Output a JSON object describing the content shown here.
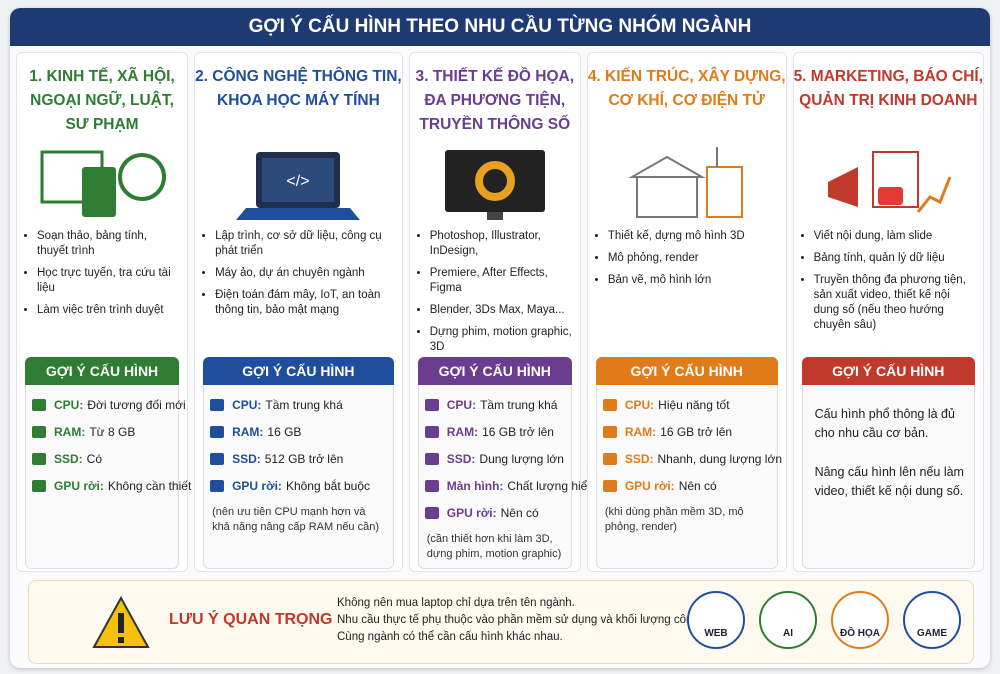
{
  "header": {
    "title": "GỢI Ý CẤU HÌNH THEO NHU CẦU TỪNG NHÓM NGÀNH"
  },
  "columns": [
    {
      "title": [
        "1. KINH TẾ, XÃ HỘI,",
        "NGOẠI NGỮ, LUẬT,",
        "SƯ PHẠM"
      ],
      "uses": [
        "Soạn thảo, bảng tính, thuyết trình",
        "Học trực tuyến, tra cứu tài liệu",
        "Làm việc trên trình duyệt"
      ],
      "config_heading": "GỢI Ý CẤU HÌNH",
      "specs": [
        {
          "label": "CPU:",
          "value": "Đời tương đối mới"
        },
        {
          "label": "RAM:",
          "value": "Từ 8 GB"
        },
        {
          "label": "SSD:",
          "value": "Có"
        },
        {
          "label": "GPU rời:",
          "value": "Không cần thiết"
        }
      ]
    },
    {
      "title": [
        "2. CÔNG NGHỆ THÔNG TIN,",
        "KHOA HỌC MÁY TÍNH"
      ],
      "uses": [
        "Lập trình, cơ sở dữ liệu, công cụ phát triển",
        "Máy ảo, dự án chuyên ngành",
        "Điện toán đám mây, IoT, an toàn thông tin, bảo mật mạng"
      ],
      "config_heading": "GỢI Ý CẤU HÌNH",
      "specs": [
        {
          "label": "CPU:",
          "value": "Tầm trung khá"
        },
        {
          "label": "RAM:",
          "value": "16 GB"
        },
        {
          "label": "SSD:",
          "value": "512 GB trở lên"
        },
        {
          "label": "GPU rời:",
          "value": "Không bắt buộc"
        }
      ],
      "note": "(nên ưu tiên CPU mạnh hơn và khả năng nâng cấp RAM nếu cần)"
    },
    {
      "title": [
        "3. THIẾT KẾ ĐỒ HỌA,",
        "ĐA PHƯƠNG TIỆN,",
        "TRUYỀN THÔNG SỐ"
      ],
      "uses": [
        "Photoshop, Illustrator, InDesign,",
        "Premiere, After Effects, Figma",
        "Blender, 3Ds Max, Maya...",
        "Dựng phim, motion graphic, 3D"
      ],
      "config_heading": "GỢI Ý CẤU HÌNH",
      "specs": [
        {
          "label": "CPU:",
          "value": "Tầm trung khá"
        },
        {
          "label": "RAM:",
          "value": "16 GB trở lên"
        },
        {
          "label": "SSD:",
          "value": "Dung lượng lớn"
        },
        {
          "label": "Màn hình:",
          "value": "Chất lượng hiển thị tốt"
        },
        {
          "label": "GPU rời:",
          "value": "Nên có"
        }
      ],
      "note": "(cần thiết hơn khi làm 3D, dựng phim, motion graphic)"
    },
    {
      "title": [
        "4. KIẾN TRÚC, XÂY DỰNG,",
        "CƠ KHÍ, CƠ ĐIỆN TỬ"
      ],
      "uses": [
        "Thiết kế, dựng mô hình 3D",
        "Mô phỏng, render",
        "Bản vẽ, mô hình lớn"
      ],
      "config_heading": "GỢI Ý CẤU HÌNH",
      "specs": [
        {
          "label": "CPU:",
          "value": "Hiệu năng tốt"
        },
        {
          "label": "RAM:",
          "value": "16 GB trở lên"
        },
        {
          "label": "SSD:",
          "value": "Nhanh, dung lượng lớn"
        },
        {
          "label": "GPU rời:",
          "value": "Nên có"
        }
      ],
      "note": "(khi dùng phần mềm 3D, mô phỏng, render)"
    },
    {
      "title": [
        "5. MARKETING, BÁO CHÍ,",
        "QUẢN TRỊ KINH DOANH"
      ],
      "uses": [
        "Viết nội dung, làm slide",
        "Bảng tính, quản lý dữ liệu",
        "Truyền thông đa phương tiện, sản xuất video, thiết kế nội dung số (nếu theo hướng chuyên sâu)"
      ],
      "config_heading": "GỢI Ý CẤU HÌNH",
      "paragraphs": [
        "Cấu hình phổ thông là đủ cho nhu cầu cơ bản.",
        "Nâng cấu hình lên nếu làm video, thiết kế nội dung số."
      ]
    }
  ],
  "footer": {
    "title": "LƯU Ý QUAN TRỌNG",
    "notes": [
      "Không nên mua laptop chỉ dựa trên tên ngành.",
      "Nhu cầu thực tế phụ thuộc vào phần mềm sử dụng và khối lượng công việc.",
      "Cùng ngành có thể cần cấu hình khác nhau."
    ],
    "badges": [
      "WEB",
      "AI",
      "ĐỒ HỌA",
      "GAME"
    ]
  }
}
